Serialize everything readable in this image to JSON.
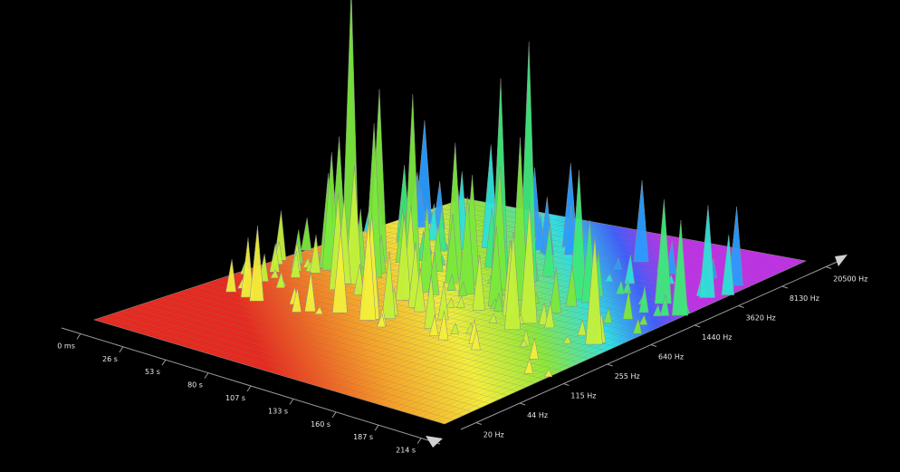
{
  "chart_data": {
    "type": "surface3d",
    "grid": true,
    "time_axis": {
      "ticks": [
        "0 ms",
        "26 s",
        "53 s",
        "80 s",
        "107 s",
        "133 s",
        "160 s",
        "187 s",
        "214 s"
      ]
    },
    "frequency_axis": {
      "scale": "log",
      "ticks": [
        "20 Hz",
        "44 Hz",
        "115 Hz",
        "255 Hz",
        "640 Hz",
        "1440 Hz",
        "3620 Hz",
        "8130 Hz",
        "20500 Hz"
      ]
    },
    "colors": {
      "background": "#000000",
      "low": "#e0201c",
      "mid_low": "#ffe23a",
      "mid": "#6eea2a",
      "mid_high": "#22e6e6",
      "high": "#b020ff",
      "mesh": "#7a7a7a",
      "axis": "#9a9a9a"
    }
  }
}
